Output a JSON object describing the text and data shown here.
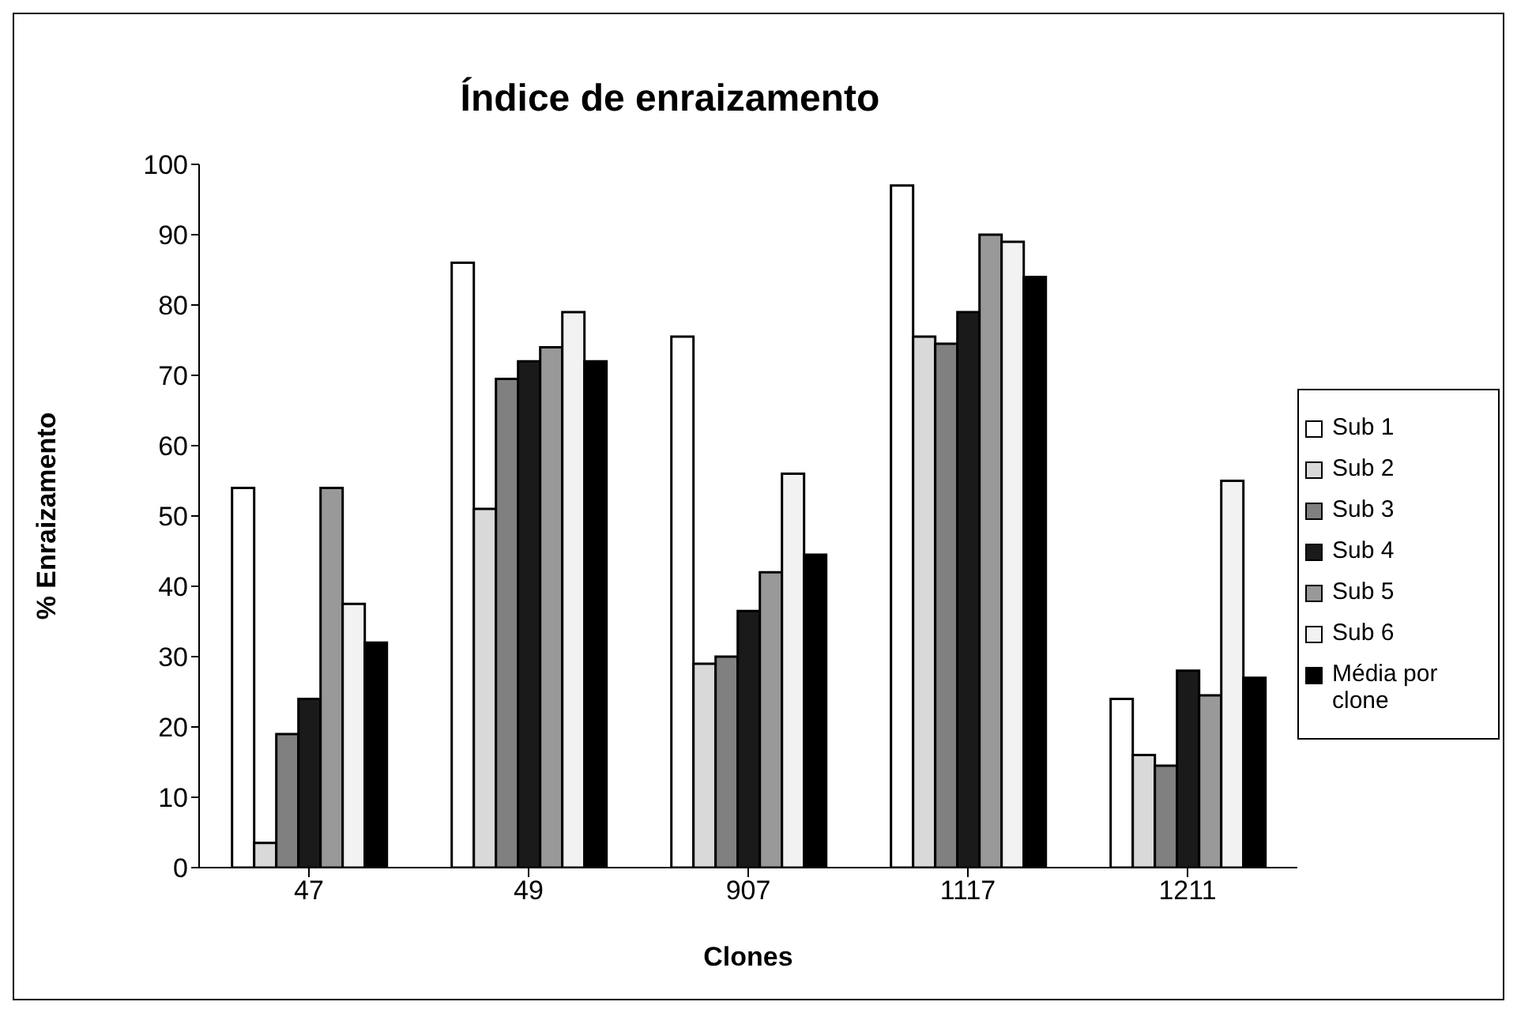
{
  "chart_data": {
    "type": "bar",
    "title": "Índice de enraizamento",
    "xlabel": "Clones",
    "ylabel": "% Enraizamento",
    "categories": [
      "47",
      "49",
      "907",
      "1117",
      "1211"
    ],
    "series": [
      {
        "name": "Sub 1",
        "color": "#ffffff",
        "values": [
          54,
          86,
          75.5,
          97,
          24
        ]
      },
      {
        "name": "Sub 2",
        "color": "#d9d9d9",
        "values": [
          3.5,
          51,
          29,
          75.5,
          16
        ]
      },
      {
        "name": "Sub 3",
        "color": "#808080",
        "values": [
          19,
          69.5,
          30,
          74.5,
          14.5
        ]
      },
      {
        "name": "Sub 4",
        "color": "#1a1a1a",
        "values": [
          24,
          72,
          36.5,
          79,
          28
        ]
      },
      {
        "name": "Sub 5",
        "color": "#999999",
        "values": [
          54,
          74,
          42,
          90,
          24.5
        ]
      },
      {
        "name": "Sub 6",
        "color": "#f2f2f2",
        "values": [
          37.5,
          79,
          56,
          89,
          55
        ]
      },
      {
        "name": "Média por clone",
        "color": "#000000",
        "values": [
          32,
          72,
          44.5,
          84,
          27
        ]
      }
    ],
    "ylim": [
      0,
      100
    ],
    "yticks": [
      0,
      10,
      20,
      30,
      40,
      50,
      60,
      70,
      80,
      90,
      100
    ],
    "legend": "right"
  }
}
